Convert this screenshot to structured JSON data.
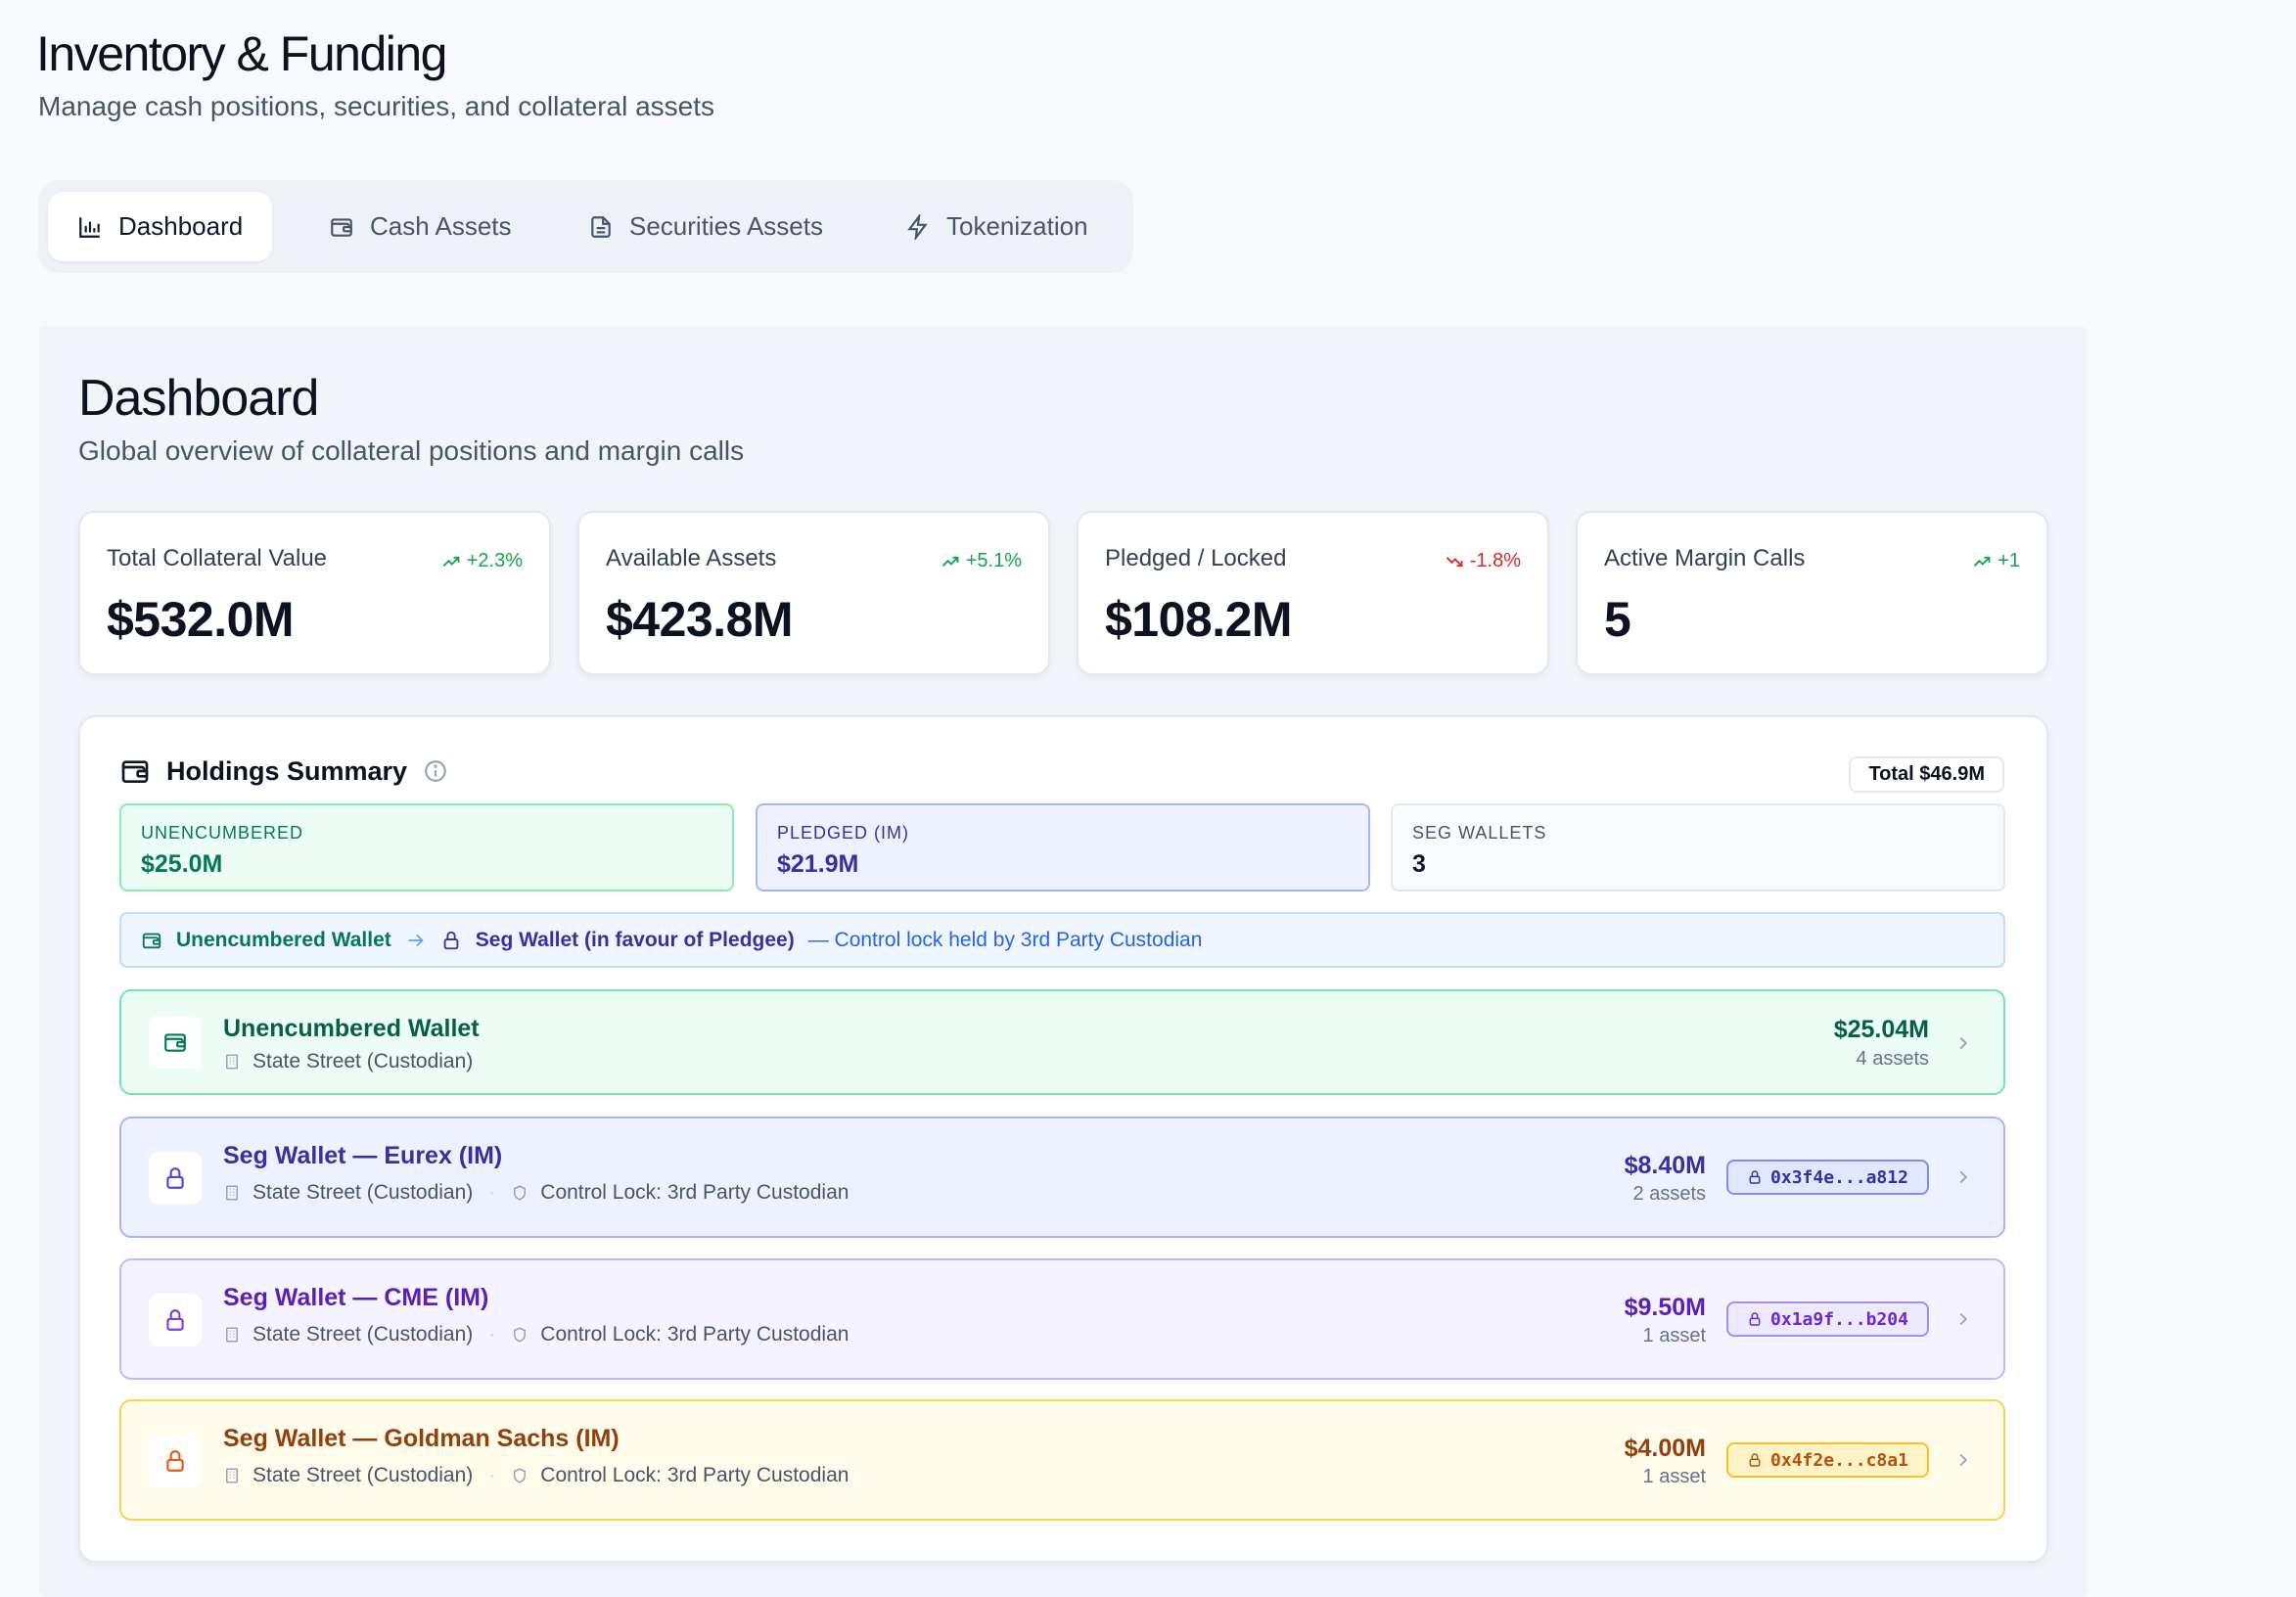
{
  "header": {
    "title": "Inventory & Funding",
    "subtitle": "Manage cash positions, securities, and collateral assets"
  },
  "tabs": [
    {
      "label": "Dashboard",
      "icon": "bar-chart-icon",
      "active": true
    },
    {
      "label": "Cash Assets",
      "icon": "wallet-icon",
      "active": false
    },
    {
      "label": "Securities Assets",
      "icon": "document-icon",
      "active": false
    },
    {
      "label": "Tokenization",
      "icon": "lightning-icon",
      "active": false
    }
  ],
  "dashboard": {
    "title": "Dashboard",
    "subtitle": "Global overview of collateral positions and margin calls"
  },
  "stats": [
    {
      "label": "Total Collateral Value",
      "value": "$532.0M",
      "delta": "+2.3%",
      "trend": "up"
    },
    {
      "label": "Available Assets",
      "value": "$423.8M",
      "delta": "+5.1%",
      "trend": "up"
    },
    {
      "label": "Pledged / Locked",
      "value": "$108.2M",
      "delta": "-1.8%",
      "trend": "down"
    },
    {
      "label": "Active Margin Calls",
      "value": "5",
      "delta": "+1",
      "trend": "up"
    }
  ],
  "holdings": {
    "title": "Holdings Summary",
    "total": "Total $46.9M",
    "summary": [
      {
        "key": "UNENCUMBERED",
        "value": "$25.0M"
      },
      {
        "key": "PLEDGED (IM)",
        "value": "$21.9M"
      },
      {
        "key": "SEG WALLETS",
        "value": "3"
      }
    ],
    "flow": {
      "from": "Unencumbered Wallet",
      "to": "Seg Wallet (in favour of Pledgee)",
      "note": "— Control lock held by 3rd Party Custodian"
    },
    "wallets": [
      {
        "name": "Unencumbered Wallet",
        "custodian": "State Street (Custodian)",
        "amount": "$25.04M",
        "count": "4 assets"
      },
      {
        "name": "Seg Wallet — Eurex (IM)",
        "custodian": "State Street (Custodian)",
        "lock": "Control Lock: 3rd Party Custodian",
        "amount": "$8.40M",
        "count": "2 assets",
        "address": "0x3f4e...a812"
      },
      {
        "name": "Seg Wallet — CME (IM)",
        "custodian": "State Street (Custodian)",
        "lock": "Control Lock: 3rd Party Custodian",
        "amount": "$9.50M",
        "count": "1 asset",
        "address": "0x1a9f...b204"
      },
      {
        "name": "Seg Wallet — Goldman Sachs (IM)",
        "custodian": "State Street (Custodian)",
        "lock": "Control Lock: 3rd Party Custodian",
        "amount": "$4.00M",
        "count": "1 asset",
        "address": "0x4f2e...c8a1"
      }
    ]
  },
  "colors": {
    "accent_green": "#16a34a",
    "accent_red": "#dc2626",
    "pledged_indigo": "#3730a3",
    "cme_purple": "#5b21b6",
    "gs_amber": "#92400e"
  }
}
